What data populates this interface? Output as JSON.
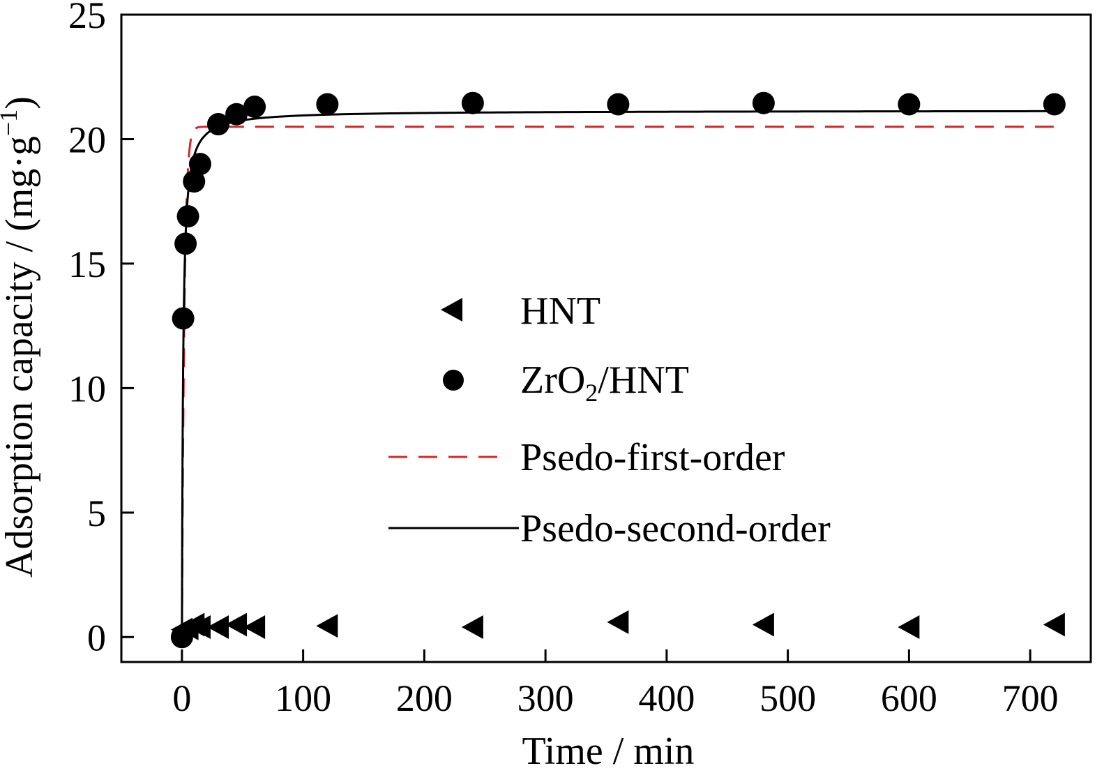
{
  "chart_data": {
    "type": "scatter",
    "title": "",
    "xlabel": "Time / min",
    "ylabel_main": "Adsorption capacity / (mg·g",
    "ylabel_sup": "−1",
    "ylabel_close": ")",
    "xlim": [
      -50,
      750
    ],
    "ylim": [
      -1,
      25
    ],
    "xticks": [
      0,
      100,
      200,
      300,
      400,
      500,
      600,
      700
    ],
    "yticks": [
      0,
      5,
      10,
      15,
      20,
      25
    ],
    "xtick_labels": [
      "0",
      "100",
      "200",
      "300",
      "400",
      "500",
      "600",
      "700"
    ],
    "ytick_labels": [
      "0",
      "5",
      "10",
      "15",
      "20",
      "25"
    ],
    "legend_position": "center",
    "grid": false,
    "colors": {
      "hnt": "#000000",
      "zro2": "#000000",
      "first_order": "#d62728",
      "second_order": "#000000"
    },
    "series": [
      {
        "name": "HNT",
        "marker": "triangle-left",
        "x": [
          0,
          5,
          10,
          15,
          30,
          45,
          60,
          120,
          240,
          360,
          480,
          600,
          720
        ],
        "y": [
          0.3,
          0.35,
          0.5,
          0.4,
          0.4,
          0.5,
          0.4,
          0.45,
          0.4,
          0.6,
          0.5,
          0.4,
          0.5
        ]
      },
      {
        "name": "ZrO",
        "name_sub": "2",
        "name_suffix": "/HNT",
        "marker": "circle",
        "x": [
          0,
          1,
          3,
          5,
          10,
          15,
          30,
          45,
          60,
          120,
          240,
          360,
          480,
          600,
          720
        ],
        "y": [
          0,
          12.8,
          15.8,
          16.9,
          18.3,
          19.0,
          20.6,
          21.0,
          21.3,
          21.4,
          21.45,
          21.4,
          21.45,
          21.4,
          21.4
        ],
        "plot_index": 1
      },
      {
        "name": "Psedo-first-order",
        "style": "dashed",
        "qe": 20.5,
        "k1": 0.5
      },
      {
        "name": "Psedo-second-order",
        "style": "solid",
        "qe": 21.15,
        "k2": 0.05
      }
    ]
  }
}
